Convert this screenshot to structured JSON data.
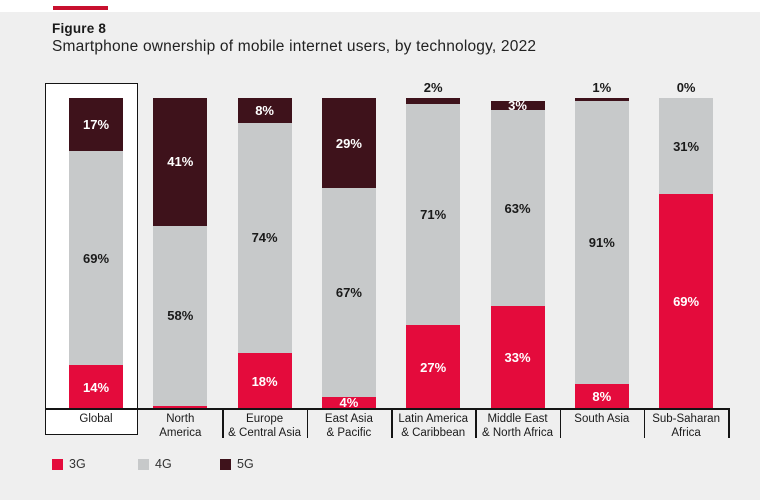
{
  "page": {
    "background_color": "#EFEFEF",
    "top_strip_color": "#FFFFFF",
    "accent_line_color": "#C8102E"
  },
  "figure": {
    "label": "Figure 8",
    "title": "Smartphone ownership of mobile internet users, by technology, 2022"
  },
  "chart_data": {
    "type": "bar",
    "stacked": true,
    "unit": "%",
    "title": "Smartphone ownership of mobile internet users, by technology, 2022",
    "categories": [
      "Global",
      "North America",
      "Europe & Central Asia",
      "East Asia & Pacific",
      "Latin America & Caribbean",
      "Middle East & North Africa",
      "South Asia",
      "Sub-Saharan Africa"
    ],
    "category_label_lines": [
      [
        "Global"
      ],
      [
        "North",
        "America"
      ],
      [
        "Europe",
        "& Central Asia"
      ],
      [
        "East Asia",
        "& Pacific"
      ],
      [
        "Latin America",
        "& Caribbean"
      ],
      [
        "Middle East",
        "& North Africa"
      ],
      [
        "South Asia"
      ],
      [
        "Sub-Saharan",
        "Africa"
      ]
    ],
    "series": [
      {
        "name": "3G",
        "color": "#E40B3C",
        "values": [
          14,
          1,
          18,
          4,
          27,
          33,
          8,
          69
        ]
      },
      {
        "name": "4G",
        "color": "#C7C9CA",
        "values": [
          69,
          58,
          74,
          67,
          71,
          63,
          91,
          31
        ]
      },
      {
        "name": "5G",
        "color": "#3E121B",
        "values": [
          17,
          41,
          8,
          29,
          2,
          3,
          1,
          0
        ]
      }
    ],
    "ylim": [
      0,
      100
    ],
    "grid": false,
    "legend": [
      "3G",
      "4G",
      "5G"
    ],
    "legend_position": "bottom-left",
    "highlighted_category": "Global",
    "value_label_colors": {
      "on_3G": "#FFFFFF",
      "on_4G": "#1A1A1A",
      "on_5G": "#FFFFFF",
      "outside": "#1A1A1A"
    },
    "label_placement_overrides": [
      {
        "series": "3G",
        "category_index": 1,
        "placement": "above_segment"
      },
      {
        "series": "5G",
        "category_index": 4,
        "placement": "above_bar"
      },
      {
        "series": "5G",
        "category_index": 6,
        "placement": "above_bar"
      },
      {
        "series": "5G",
        "category_index": 7,
        "placement": "above_bar"
      }
    ]
  }
}
